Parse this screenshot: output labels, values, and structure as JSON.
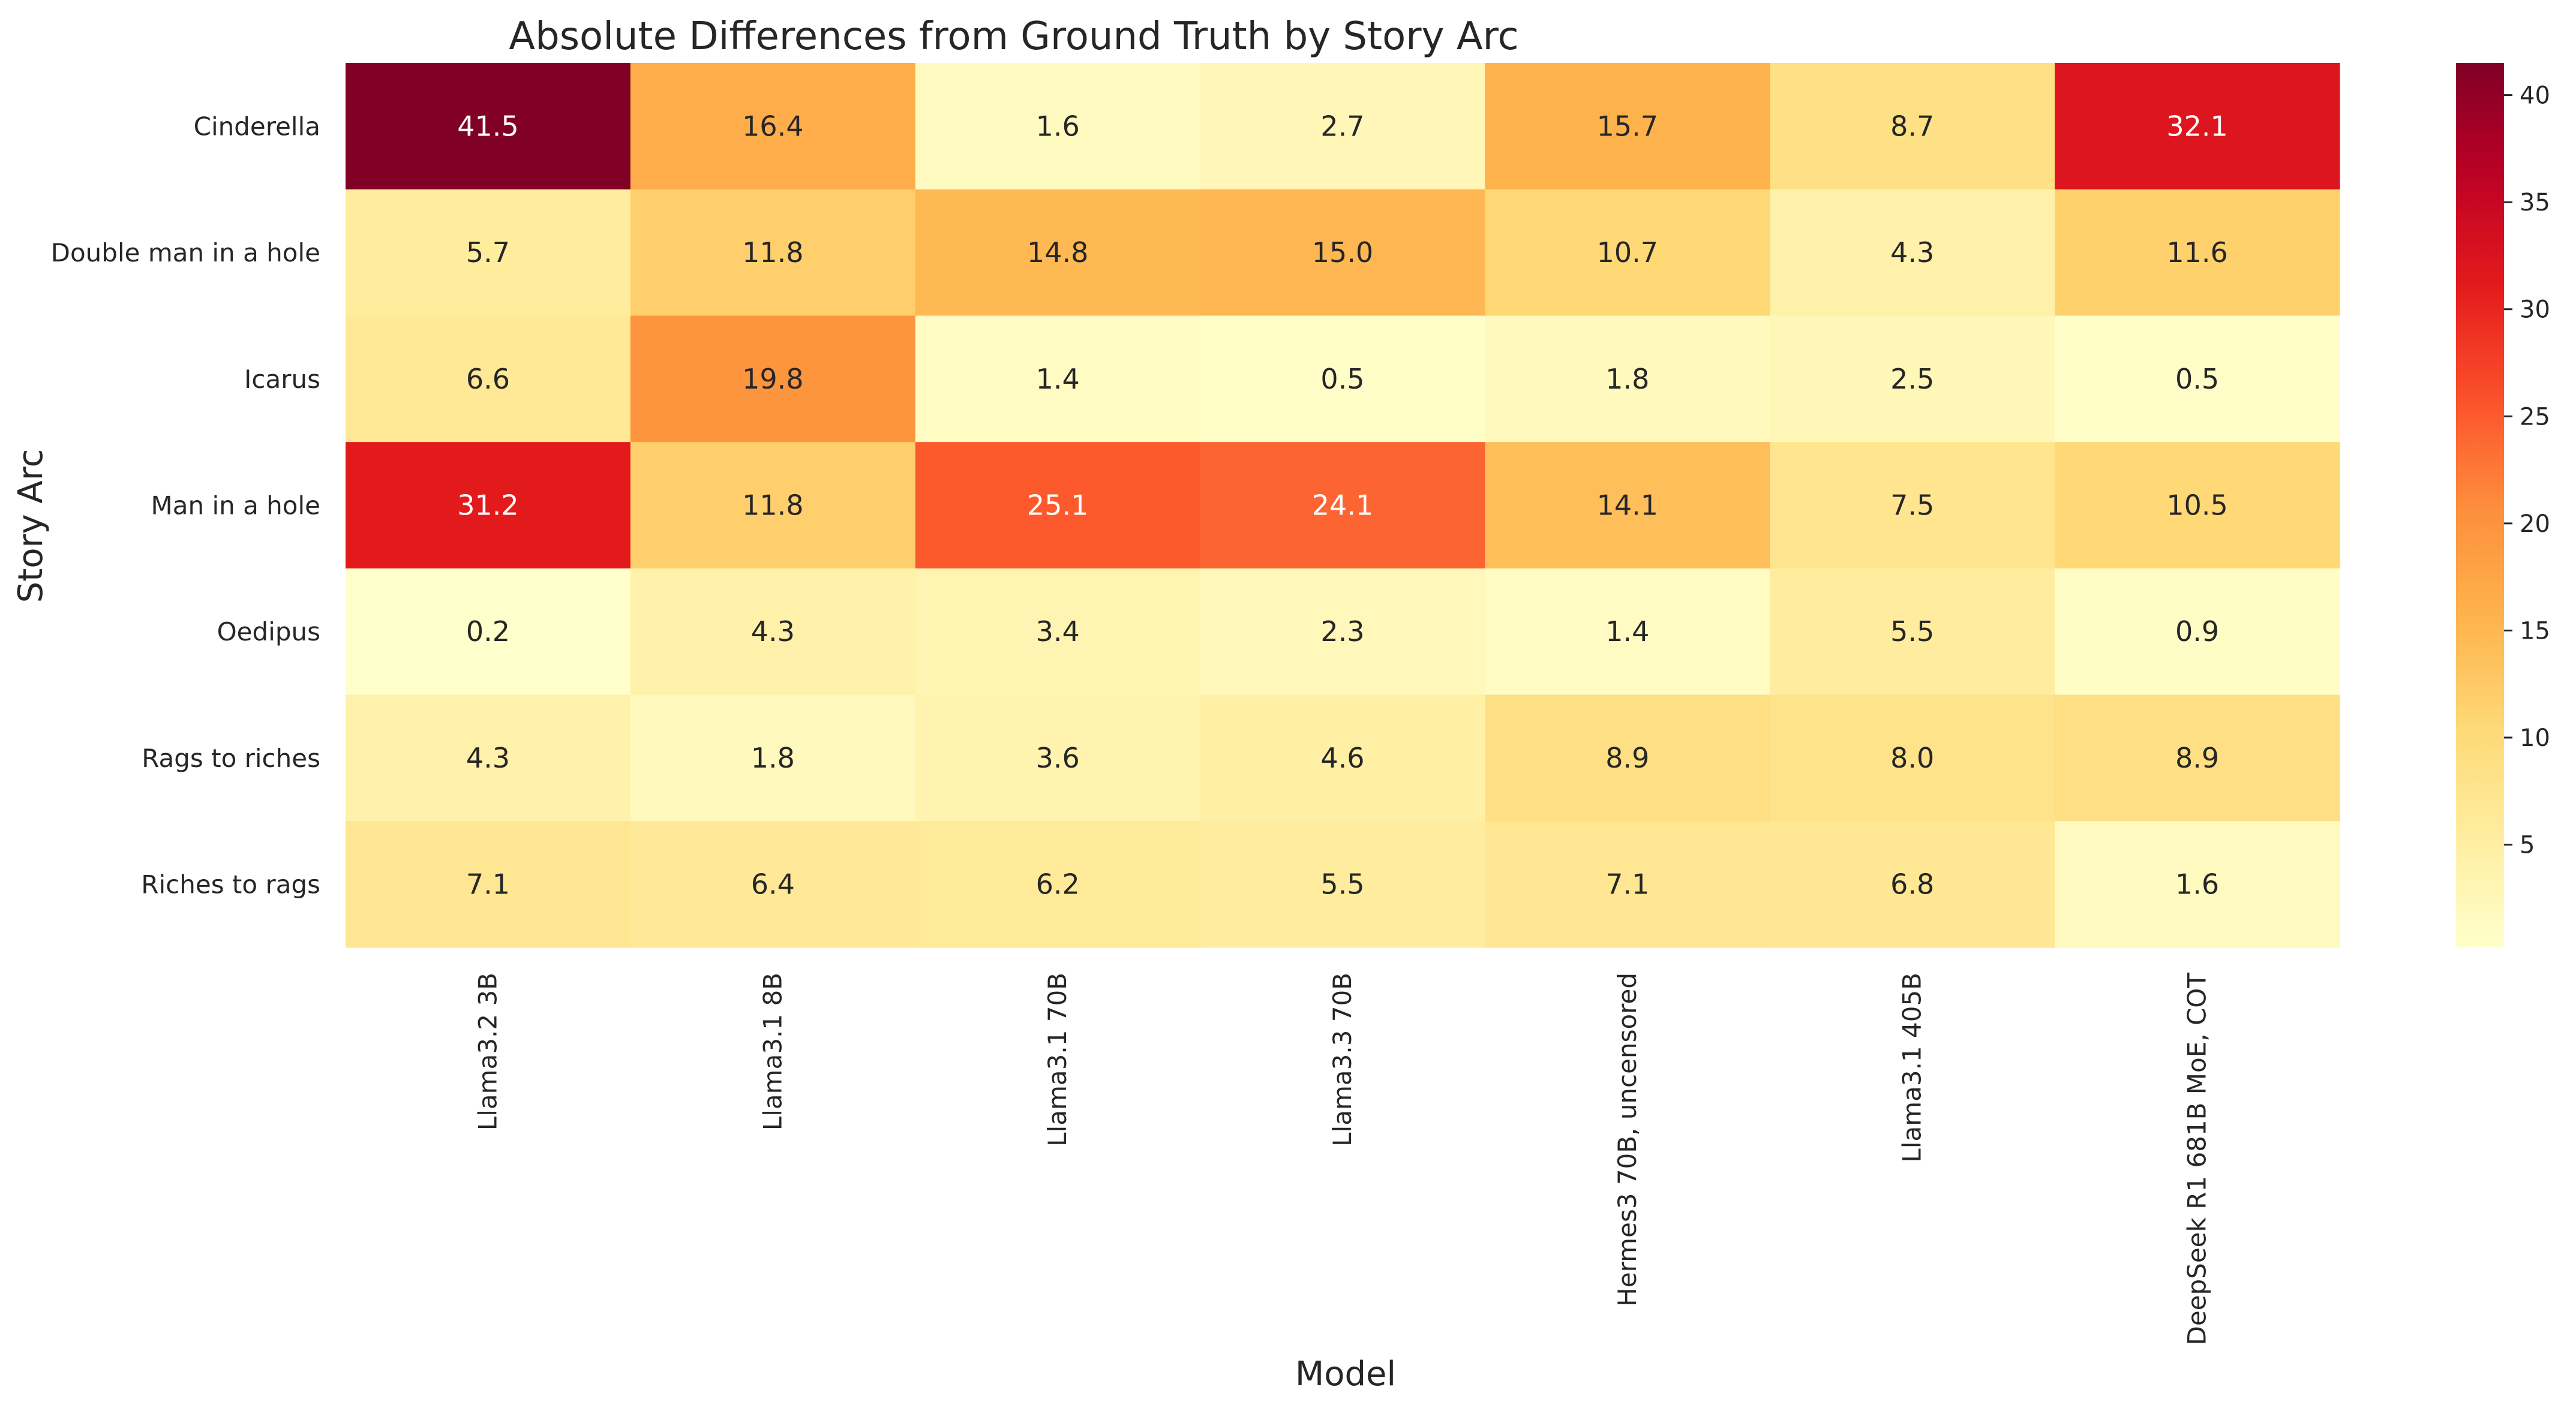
{
  "chart_data": {
    "type": "heatmap",
    "title": "Absolute Differences from Ground Truth by Story Arc",
    "xlabel": "Model",
    "ylabel": "Story Arc",
    "x_categories": [
      "Llama3.2 3B",
      "Llama3.1 8B",
      "Llama3.1 70B",
      "Llama3.3 70B",
      "Hermes3 70B, uncensored",
      "Llama3.1 405B",
      "DeepSeek R1 681B MoE, COT"
    ],
    "y_categories": [
      "Cinderella",
      "Double man in a hole",
      "Icarus",
      "Man in a hole",
      "Oedipus",
      "Rags to riches",
      "Riches to rags"
    ],
    "values": [
      [
        41.5,
        16.4,
        1.6,
        2.7,
        15.7,
        8.7,
        32.1
      ],
      [
        5.7,
        11.8,
        14.8,
        15.0,
        10.7,
        4.3,
        11.6
      ],
      [
        6.6,
        19.8,
        1.4,
        0.5,
        1.8,
        2.5,
        0.5
      ],
      [
        31.2,
        11.8,
        25.1,
        24.1,
        14.1,
        7.5,
        10.5
      ],
      [
        0.2,
        4.3,
        3.4,
        2.3,
        1.4,
        5.5,
        0.9
      ],
      [
        4.3,
        1.8,
        3.6,
        4.6,
        8.9,
        8.0,
        8.9
      ],
      [
        7.1,
        6.4,
        6.2,
        5.5,
        7.1,
        6.8,
        1.6
      ]
    ],
    "colorbar": {
      "colormap": "YlOrRd",
      "range": [
        0.2,
        41.5
      ],
      "ticks": [
        5,
        10,
        15,
        20,
        25,
        30,
        35,
        40
      ]
    },
    "grid": false,
    "legend": "colorbar-right"
  }
}
